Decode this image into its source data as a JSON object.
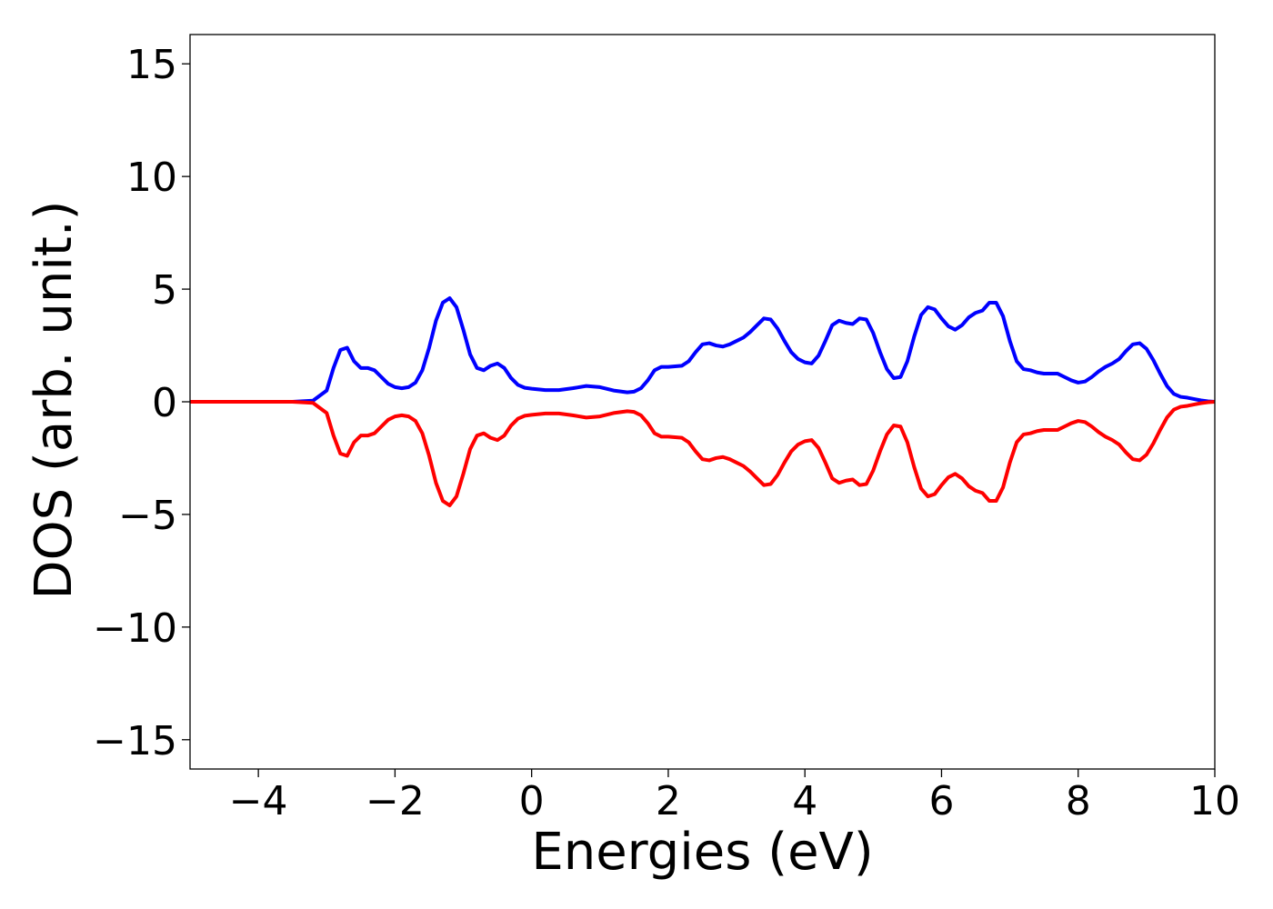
{
  "chart_data": {
    "type": "line",
    "title": "",
    "xlabel": "Energies (eV)",
    "ylabel": "DOS (arb. unit.)",
    "xlim": [
      -5,
      10
    ],
    "ylim": [
      -16.3,
      16.3
    ],
    "grid": false,
    "legend": "none",
    "x_ticks": [
      -4,
      -2,
      0,
      2,
      4,
      6,
      8,
      10
    ],
    "x_tick_labels": [
      "−4",
      "−2",
      "0",
      "2",
      "4",
      "6",
      "8",
      "10"
    ],
    "y_ticks": [
      15,
      10,
      5,
      0,
      -5,
      -10,
      -15
    ],
    "y_tick_labels": [
      "15",
      "10",
      "5",
      "0",
      "−5",
      "−10",
      "−15"
    ],
    "series": [
      {
        "color": "#0000ff",
        "x": [
          -5,
          -3.5,
          -3.2,
          -3.0,
          -2.9,
          -2.8,
          -2.7,
          -2.6,
          -2.5,
          -2.4,
          -2.3,
          -2.2,
          -2.1,
          -2.0,
          -1.9,
          -1.8,
          -1.7,
          -1.6,
          -1.5,
          -1.4,
          -1.3,
          -1.2,
          -1.1,
          -1.0,
          -0.9,
          -0.8,
          -0.7,
          -0.6,
          -0.5,
          -0.4,
          -0.3,
          -0.2,
          -0.1,
          0.0,
          0.2,
          0.4,
          0.6,
          0.8,
          1.0,
          1.2,
          1.4,
          1.5,
          1.6,
          1.7,
          1.8,
          1.9,
          2.0,
          2.2,
          2.3,
          2.4,
          2.5,
          2.6,
          2.7,
          2.8,
          2.9,
          3.0,
          3.1,
          3.2,
          3.3,
          3.4,
          3.5,
          3.6,
          3.7,
          3.8,
          3.9,
          4.0,
          4.1,
          4.2,
          4.3,
          4.4,
          4.5,
          4.6,
          4.7,
          4.8,
          4.9,
          5.0,
          5.1,
          5.2,
          5.3,
          5.4,
          5.5,
          5.6,
          5.7,
          5.8,
          5.9,
          6.0,
          6.1,
          6.2,
          6.3,
          6.4,
          6.5,
          6.6,
          6.7,
          6.8,
          6.9,
          7.0,
          7.1,
          7.2,
          7.3,
          7.4,
          7.5,
          7.6,
          7.7,
          7.8,
          7.9,
          8.0,
          8.1,
          8.2,
          8.3,
          8.4,
          8.5,
          8.6,
          8.7,
          8.8,
          8.9,
          9.0,
          9.1,
          9.2,
          9.3,
          9.4,
          9.5,
          9.6,
          9.7,
          9.8,
          9.9,
          10.0
        ],
        "y": [
          0,
          0,
          0.05,
          0.5,
          1.5,
          2.3,
          2.4,
          1.8,
          1.5,
          1.5,
          1.4,
          1.1,
          0.8,
          0.65,
          0.6,
          0.65,
          0.85,
          1.4,
          2.4,
          3.6,
          4.4,
          4.6,
          4.2,
          3.2,
          2.1,
          1.5,
          1.4,
          1.6,
          1.7,
          1.5,
          1.05,
          0.75,
          0.62,
          0.58,
          0.52,
          0.52,
          0.6,
          0.7,
          0.65,
          0.5,
          0.42,
          0.45,
          0.6,
          0.95,
          1.4,
          1.55,
          1.55,
          1.6,
          1.8,
          2.2,
          2.55,
          2.6,
          2.5,
          2.45,
          2.55,
          2.7,
          2.85,
          3.1,
          3.4,
          3.7,
          3.65,
          3.25,
          2.7,
          2.2,
          1.9,
          1.75,
          1.7,
          2.05,
          2.7,
          3.4,
          3.6,
          3.5,
          3.45,
          3.7,
          3.65,
          3.05,
          2.2,
          1.45,
          1.05,
          1.1,
          1.8,
          2.9,
          3.85,
          4.2,
          4.1,
          3.7,
          3.35,
          3.2,
          3.4,
          3.75,
          3.95,
          4.05,
          4.4,
          4.4,
          3.8,
          2.7,
          1.8,
          1.45,
          1.4,
          1.3,
          1.25,
          1.25,
          1.25,
          1.1,
          0.95,
          0.85,
          0.9,
          1.1,
          1.35,
          1.55,
          1.7,
          1.9,
          2.25,
          2.55,
          2.6,
          2.35,
          1.85,
          1.25,
          0.7,
          0.35,
          0.22,
          0.18,
          0.12,
          0.06,
          0.02,
          0
        ]
      },
      {
        "color": "#ff0000",
        "x": [
          -5,
          -3.5,
          -3.2,
          -3.0,
          -2.9,
          -2.8,
          -2.7,
          -2.6,
          -2.5,
          -2.4,
          -2.3,
          -2.2,
          -2.1,
          -2.0,
          -1.9,
          -1.8,
          -1.7,
          -1.6,
          -1.5,
          -1.4,
          -1.3,
          -1.2,
          -1.1,
          -1.0,
          -0.9,
          -0.8,
          -0.7,
          -0.6,
          -0.5,
          -0.4,
          -0.3,
          -0.2,
          -0.1,
          0.0,
          0.2,
          0.4,
          0.6,
          0.8,
          1.0,
          1.2,
          1.4,
          1.5,
          1.6,
          1.7,
          1.8,
          1.9,
          2.0,
          2.2,
          2.3,
          2.4,
          2.5,
          2.6,
          2.7,
          2.8,
          2.9,
          3.0,
          3.1,
          3.2,
          3.3,
          3.4,
          3.5,
          3.6,
          3.7,
          3.8,
          3.9,
          4.0,
          4.1,
          4.2,
          4.3,
          4.4,
          4.5,
          4.6,
          4.7,
          4.8,
          4.9,
          5.0,
          5.1,
          5.2,
          5.3,
          5.4,
          5.5,
          5.6,
          5.7,
          5.8,
          5.9,
          6.0,
          6.1,
          6.2,
          6.3,
          6.4,
          6.5,
          6.6,
          6.7,
          6.8,
          6.9,
          7.0,
          7.1,
          7.2,
          7.3,
          7.4,
          7.5,
          7.6,
          7.7,
          7.8,
          7.9,
          8.0,
          8.1,
          8.2,
          8.3,
          8.4,
          8.5,
          8.6,
          8.7,
          8.8,
          8.9,
          9.0,
          9.1,
          9.2,
          9.3,
          9.4,
          9.5,
          9.6,
          9.7,
          9.8,
          9.9,
          10.0
        ],
        "y": [
          0,
          0,
          -0.05,
          -0.5,
          -1.5,
          -2.3,
          -2.4,
          -1.8,
          -1.5,
          -1.5,
          -1.4,
          -1.1,
          -0.8,
          -0.65,
          -0.6,
          -0.65,
          -0.85,
          -1.4,
          -2.4,
          -3.6,
          -4.4,
          -4.6,
          -4.2,
          -3.2,
          -2.1,
          -1.5,
          -1.4,
          -1.6,
          -1.7,
          -1.5,
          -1.05,
          -0.75,
          -0.62,
          -0.58,
          -0.52,
          -0.52,
          -0.6,
          -0.7,
          -0.65,
          -0.5,
          -0.42,
          -0.45,
          -0.6,
          -0.95,
          -1.4,
          -1.55,
          -1.55,
          -1.6,
          -1.8,
          -2.2,
          -2.55,
          -2.6,
          -2.5,
          -2.45,
          -2.55,
          -2.7,
          -2.85,
          -3.1,
          -3.4,
          -3.7,
          -3.65,
          -3.25,
          -2.7,
          -2.2,
          -1.9,
          -1.75,
          -1.7,
          -2.05,
          -2.7,
          -3.4,
          -3.6,
          -3.5,
          -3.45,
          -3.7,
          -3.65,
          -3.05,
          -2.2,
          -1.45,
          -1.05,
          -1.1,
          -1.8,
          -2.9,
          -3.85,
          -4.2,
          -4.1,
          -3.7,
          -3.35,
          -3.2,
          -3.4,
          -3.75,
          -3.95,
          -4.05,
          -4.4,
          -4.4,
          -3.8,
          -2.7,
          -1.8,
          -1.45,
          -1.4,
          -1.3,
          -1.25,
          -1.25,
          -1.25,
          -1.1,
          -0.95,
          -0.85,
          -0.9,
          -1.1,
          -1.35,
          -1.55,
          -1.7,
          -1.9,
          -2.25,
          -2.55,
          -2.6,
          -2.35,
          -1.85,
          -1.25,
          -0.7,
          -0.35,
          -0.22,
          -0.18,
          -0.12,
          -0.06,
          -0.02,
          0
        ]
      }
    ]
  }
}
